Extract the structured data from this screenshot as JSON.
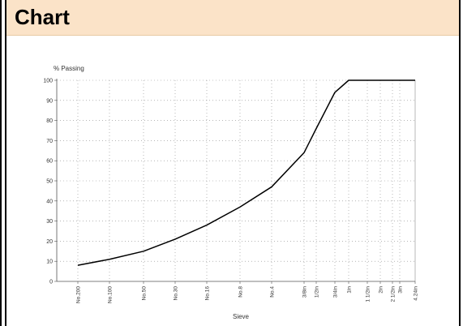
{
  "header": {
    "title": "Chart"
  },
  "chart_data": {
    "type": "line",
    "ylabel": "% Passing",
    "xlabel": "Sieve",
    "ylim": [
      0,
      100
    ],
    "yticks": [
      0,
      10,
      20,
      30,
      40,
      50,
      60,
      70,
      80,
      90,
      100
    ],
    "xticks": [
      "No.200",
      "No.100",
      "No.50",
      "No.30",
      "No.16",
      "No.8",
      "No.4",
      "3/8in",
      "1/2in",
      "3/4in",
      "1in",
      "1 1/2in",
      "2in",
      "2 1/2in",
      "3in",
      "4.24in"
    ],
    "grid": true,
    "series": [
      {
        "points": [
          {
            "x": "No.200",
            "y": 8
          },
          {
            "x": "No.100",
            "y": 11
          },
          {
            "x": "No.50",
            "y": 15
          },
          {
            "x": "No.30",
            "y": 21
          },
          {
            "x": "No.16",
            "y": 28
          },
          {
            "x": "No.8",
            "y": 37
          },
          {
            "x": "No.4",
            "y": 47
          },
          {
            "x": "3/8in",
            "y": 64
          },
          {
            "x": "1/2in",
            "y": 76
          },
          {
            "x": "3/4in",
            "y": 94
          },
          {
            "x": "1in",
            "y": 100
          },
          {
            "x": "1 1/2in",
            "y": 100
          },
          {
            "x": "2in",
            "y": 100
          },
          {
            "x": "2 1/2in",
            "y": 100
          },
          {
            "x": "3in",
            "y": 100
          },
          {
            "x": "4.24in",
            "y": 100
          }
        ]
      }
    ],
    "colors": {
      "line": "#000000",
      "grid": "#8a8a8a",
      "axis": "#555555"
    }
  }
}
